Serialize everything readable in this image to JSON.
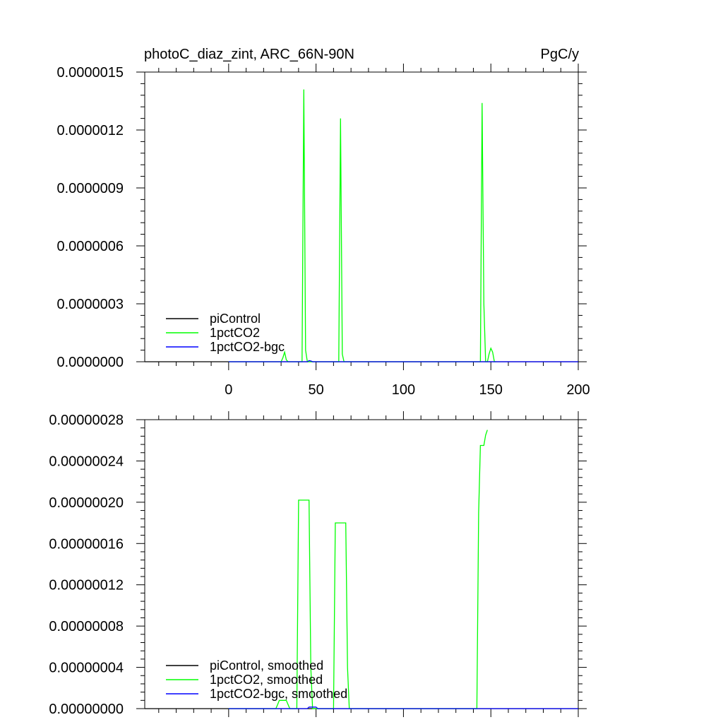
{
  "figure": {
    "title_left": "photoC_diaz_zint, ARC_66N-90N",
    "title_right": "PgC/y"
  },
  "colors": {
    "piControl": "#000000",
    "1pctCO2": "#00ff00",
    "1pctCO2-bgc": "#0000ff"
  },
  "chart_data": [
    {
      "type": "line",
      "xlim": [
        -48,
        200
      ],
      "ylim": [
        0,
        1.5e-06
      ],
      "x_ticks": [
        0,
        50,
        100,
        150,
        200
      ],
      "x_tick_labels": [
        "0",
        "50",
        "100",
        "150",
        "200"
      ],
      "y_ticks": [
        0,
        3e-07,
        6e-07,
        9e-07,
        1.2e-06,
        1.5e-06
      ],
      "y_tick_labels": [
        "0.0000000",
        "0.0000003",
        "0.0000006",
        "0.0000009",
        "0.0000012",
        "0.0000015"
      ],
      "grid": false,
      "legend_position": "bottom-left",
      "series": [
        {
          "name": "piControl",
          "x": [
            -48,
            200
          ],
          "y": [
            0,
            0
          ]
        },
        {
          "name": "1pctCO2",
          "x": [
            0,
            30,
            31,
            32,
            33,
            34,
            42,
            43,
            44,
            45,
            63,
            64,
            65,
            66,
            144,
            145,
            146,
            147,
            148,
            149,
            150,
            151,
            152,
            153
          ],
          "y": [
            0,
            0,
            2e-08,
            5e-08,
            1e-08,
            0,
            0,
            1.41e-06,
            6e-08,
            0,
            0,
            1.26e-06,
            4e-08,
            0,
            0,
            1.34e-06,
            3e-07,
            0,
            0,
            4e-08,
            7e-08,
            5e-08,
            0,
            0
          ]
        },
        {
          "name": "1pctCO2-bgc",
          "x": [
            0,
            45,
            46,
            47,
            48,
            200
          ],
          "y": [
            0,
            0,
            6e-09,
            4e-09,
            0,
            0
          ]
        }
      ]
    },
    {
      "type": "line",
      "xlim": [
        -48,
        200
      ],
      "ylim": [
        0,
        2.8e-07
      ],
      "x_ticks": [
        0,
        50,
        100,
        150,
        200
      ],
      "x_tick_labels": [],
      "y_ticks": [
        0,
        4e-08,
        8e-08,
        1.2e-07,
        1.6e-07,
        2e-07,
        2.4e-07,
        2.8e-07
      ],
      "y_tick_labels": [
        "0.00000000",
        "0.00000004",
        "0.00000008",
        "0.00000012",
        "0.00000016",
        "0.00000020",
        "0.00000024",
        "0.00000028"
      ],
      "grid": false,
      "legend_position": "bottom-left",
      "series": [
        {
          "name": "piControl, smoothed",
          "x": [
            -48,
            200
          ],
          "y": [
            0,
            0
          ]
        },
        {
          "name": "1pctCO2, smoothed",
          "x": [
            0,
            27,
            28,
            29,
            30,
            31,
            32,
            33,
            34,
            35,
            39,
            40,
            41,
            46,
            47,
            48,
            60,
            61,
            62,
            67,
            68,
            69,
            142,
            143,
            144,
            145,
            146,
            147,
            148
          ],
          "y": [
            0,
            0,
            4e-09,
            8e-09,
            8e-09,
            8e-09,
            8e-09,
            8e-09,
            4e-09,
            0,
            0,
            2.02e-07,
            2.02e-07,
            2.02e-07,
            4e-08,
            0,
            0,
            1.8e-07,
            1.8e-07,
            1.8e-07,
            4e-08,
            0,
            0,
            1.9e-07,
            2.55e-07,
            2.55e-07,
            2.55e-07,
            2.65e-07,
            2.7e-07
          ]
        },
        {
          "name": "1pctCO2-bgc, smoothed",
          "x": [
            0,
            45,
            46,
            50,
            51,
            200
          ],
          "y": [
            0,
            0,
            1.5e-09,
            1.5e-09,
            0,
            0
          ]
        }
      ]
    }
  ]
}
